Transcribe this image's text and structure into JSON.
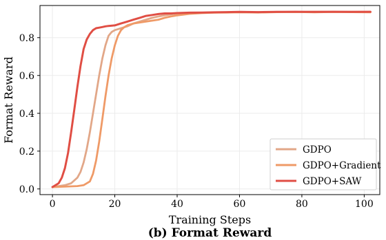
{
  "caption": "(b) Format Reward",
  "chart_data": {
    "type": "line",
    "title": "",
    "xlabel": "Training Steps",
    "ylabel": "Format Reward",
    "xlim": [
      -4,
      105
    ],
    "ylim": [
      -0.03,
      0.97
    ],
    "xticks": [
      0,
      20,
      40,
      60,
      80,
      100
    ],
    "yticks": [
      0.0,
      0.2,
      0.4,
      0.6,
      0.8
    ],
    "xtick_labels": [
      "0",
      "20",
      "40",
      "60",
      "80",
      "100"
    ],
    "ytick_labels": [
      "0.0",
      "0.2",
      "0.4",
      "0.6",
      "0.8"
    ],
    "grid": true,
    "legend_position": "bottom-right",
    "series": [
      {
        "name": "GDPO",
        "color": "#e2a788",
        "x": [
          0,
          2,
          4,
          6,
          8,
          9,
          10,
          11,
          12,
          13,
          14,
          15,
          16,
          17,
          18,
          19,
          20,
          21,
          22,
          24,
          26,
          28,
          30,
          32,
          34,
          36,
          38,
          40,
          44,
          48,
          52,
          56,
          60,
          66,
          72,
          78,
          84,
          90,
          96,
          102
        ],
        "y": [
          0.01,
          0.015,
          0.02,
          0.03,
          0.06,
          0.09,
          0.14,
          0.21,
          0.3,
          0.4,
          0.5,
          0.6,
          0.69,
          0.76,
          0.81,
          0.83,
          0.84,
          0.845,
          0.85,
          0.86,
          0.875,
          0.885,
          0.895,
          0.905,
          0.912,
          0.918,
          0.923,
          0.928,
          0.93,
          0.932,
          0.933,
          0.934,
          0.935,
          0.934,
          0.936,
          0.935,
          0.937,
          0.936,
          0.937,
          0.936
        ]
      },
      {
        "name": "GDPO+Gradient",
        "color": "#ef9a67",
        "x": [
          0,
          4,
          8,
          10,
          12,
          13,
          14,
          15,
          16,
          17,
          18,
          19,
          20,
          21,
          22,
          23,
          24,
          26,
          28,
          30,
          32,
          34,
          36,
          38,
          40,
          44,
          48,
          52,
          56,
          60,
          66,
          72,
          78,
          84,
          90,
          96,
          102
        ],
        "y": [
          0.01,
          0.012,
          0.015,
          0.02,
          0.04,
          0.08,
          0.15,
          0.25,
          0.37,
          0.49,
          0.6,
          0.69,
          0.76,
          0.81,
          0.84,
          0.855,
          0.865,
          0.875,
          0.88,
          0.885,
          0.89,
          0.895,
          0.905,
          0.912,
          0.918,
          0.926,
          0.93,
          0.932,
          0.933,
          0.934,
          0.933,
          0.935,
          0.936,
          0.934,
          0.936,
          0.935,
          0.934
        ]
      },
      {
        "name": "GDPO+SAW",
        "color": "#e04e44",
        "x": [
          0,
          2,
          3,
          4,
          5,
          6,
          7,
          8,
          9,
          10,
          11,
          12,
          13,
          14,
          15,
          16,
          17,
          18,
          20,
          22,
          24,
          26,
          28,
          30,
          32,
          34,
          36,
          38,
          40,
          44,
          48,
          52,
          56,
          60,
          66,
          72,
          78,
          84,
          90,
          96,
          102
        ],
        "y": [
          0.01,
          0.03,
          0.06,
          0.11,
          0.19,
          0.3,
          0.42,
          0.54,
          0.65,
          0.74,
          0.79,
          0.82,
          0.84,
          0.85,
          0.853,
          0.856,
          0.86,
          0.862,
          0.865,
          0.875,
          0.885,
          0.895,
          0.905,
          0.915,
          0.92,
          0.925,
          0.928,
          0.928,
          0.93,
          0.932,
          0.933,
          0.934,
          0.935,
          0.936,
          0.935,
          0.936,
          0.937,
          0.936,
          0.937,
          0.936,
          0.937
        ]
      }
    ]
  }
}
